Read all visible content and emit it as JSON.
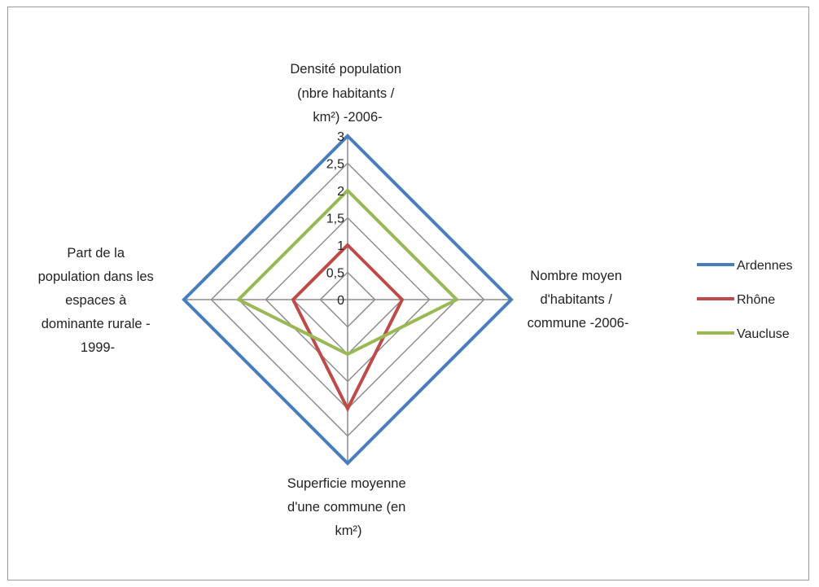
{
  "chart_data": {
    "type": "radar",
    "axes": [
      "Densité population (nbre habitants / km²) -2006-",
      "Nombre moyen d'habitants / commune -2006-",
      "Superficie moyenne d'une commune (en km²)",
      "Part de la population dans les espaces à dominante rurale - 1999-"
    ],
    "axis_label_lines": [
      [
        "Densité population",
        "(nbre habitants /",
        "km²) -2006-"
      ],
      [
        "Nombre moyen",
        "d'habitants /",
        "commune -2006-"
      ],
      [
        "Superficie moyenne",
        "d'une commune (en",
        "km²)"
      ],
      [
        "Part de la",
        "population dans les",
        "espaces à",
        "dominante rurale -",
        "1999-"
      ]
    ],
    "rlim": [
      0,
      3
    ],
    "ticks": [
      0,
      0.5,
      1,
      1.5,
      2,
      2.5,
      3
    ],
    "tick_labels": [
      "0",
      "0,5",
      "1",
      "1,5",
      "2",
      "2,5",
      "3"
    ],
    "grid": true,
    "legend_position": "right",
    "series": [
      {
        "name": "Ardennes",
        "values": [
          3,
          3,
          3,
          3
        ],
        "color": "#4a7ebb"
      },
      {
        "name": "Rhône",
        "values": [
          1,
          1,
          2,
          1
        ],
        "color": "#be4b48"
      },
      {
        "name": "Vaucluse",
        "values": [
          2,
          2,
          1,
          2
        ],
        "color": "#98b954"
      }
    ]
  }
}
